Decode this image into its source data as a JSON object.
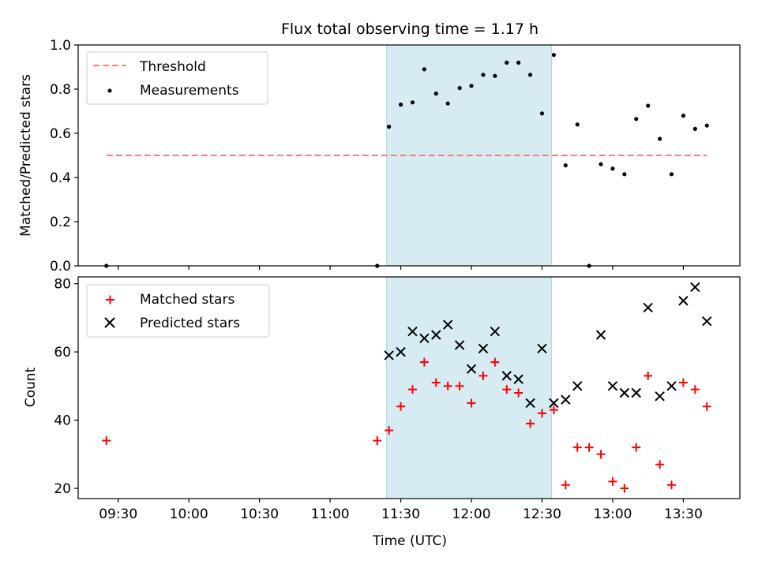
{
  "chart_data": {
    "title": "Flux total observing time = 1.17 h",
    "xlabel": "Time (UTC)",
    "x_ticks": [
      "09:30",
      "10:00",
      "10:30",
      "11:00",
      "11:30",
      "12:00",
      "12:30",
      "13:00",
      "13:30"
    ],
    "xlim": [
      "09:13",
      "13:54"
    ],
    "shaded_region": {
      "start": "11:24",
      "end": "12:34",
      "color": "#add8e6"
    },
    "panels": [
      {
        "type": "scatter",
        "ylabel": "Matched/Predicted stars",
        "ylim": [
          0,
          1.0
        ],
        "y_ticks": [
          "0.0",
          "0.2",
          "0.4",
          "0.6",
          "0.8",
          "1.0"
        ],
        "legend_position": "upper-left",
        "series": [
          {
            "name": "Threshold",
            "style": "dashed-line",
            "color": "#f08080",
            "x": [
              "09:25",
              "13:40"
            ],
            "y": [
              0.5,
              0.5
            ]
          },
          {
            "name": "Measurements",
            "style": "dot",
            "color": "#000000",
            "x": [
              "09:25",
              "11:20",
              "11:25",
              "11:30",
              "11:35",
              "11:40",
              "11:45",
              "11:50",
              "11:55",
              "12:00",
              "12:05",
              "12:10",
              "12:15",
              "12:20",
              "12:25",
              "12:30",
              "12:35",
              "12:40",
              "12:45",
              "12:50",
              "12:55",
              "13:00",
              "13:05",
              "13:10",
              "13:15",
              "13:20",
              "13:25",
              "13:30",
              "13:35",
              "13:40"
            ],
            "y": [
              0.0,
              0.0,
              0.63,
              0.73,
              0.74,
              0.89,
              0.78,
              0.735,
              0.805,
              0.815,
              0.865,
              0.86,
              0.92,
              0.92,
              0.865,
              0.69,
              0.955,
              0.455,
              0.64,
              0.0,
              0.46,
              0.44,
              0.415,
              0.665,
              0.725,
              0.575,
              0.415,
              0.68,
              0.62,
              0.635
            ]
          }
        ]
      },
      {
        "type": "scatter",
        "ylabel": "Count",
        "ylim": [
          17,
          82
        ],
        "y_ticks": [
          "20",
          "40",
          "60",
          "80"
        ],
        "legend_position": "upper-left",
        "series": [
          {
            "name": "Matched stars",
            "style": "plus",
            "color": "#ff0000",
            "x": [
              "09:25",
              "11:20",
              "11:25",
              "11:30",
              "11:35",
              "11:40",
              "11:45",
              "11:50",
              "11:55",
              "12:00",
              "12:05",
              "12:10",
              "12:15",
              "12:20",
              "12:25",
              "12:30",
              "12:35",
              "12:40",
              "12:45",
              "12:50",
              "12:55",
              "13:00",
              "13:05",
              "13:10",
              "13:15",
              "13:20",
              "13:25",
              "13:30",
              "13:35",
              "13:40"
            ],
            "y": [
              34,
              34,
              37,
              44,
              49,
              57,
              51,
              50,
              50,
              45,
              53,
              57,
              49,
              48,
              39,
              42,
              43,
              21,
              32,
              32,
              30,
              22,
              20,
              32,
              53,
              27,
              21,
              51,
              49,
              44
            ]
          },
          {
            "name": "Predicted stars",
            "style": "x",
            "color": "#000000",
            "x": [
              "11:25",
              "11:30",
              "11:35",
              "11:40",
              "11:45",
              "11:50",
              "11:55",
              "12:00",
              "12:05",
              "12:10",
              "12:15",
              "12:20",
              "12:25",
              "12:30",
              "12:35",
              "12:40",
              "12:45",
              "12:55",
              "13:00",
              "13:05",
              "13:10",
              "13:15",
              "13:20",
              "13:25",
              "13:30",
              "13:35",
              "13:40"
            ],
            "y": [
              59,
              60,
              66,
              64,
              65,
              68,
              62,
              55,
              61,
              66,
              53,
              52,
              45,
              61,
              45,
              46,
              50,
              65,
              50,
              48,
              48,
              73,
              47,
              50,
              75,
              79,
              69
            ]
          }
        ]
      }
    ]
  }
}
